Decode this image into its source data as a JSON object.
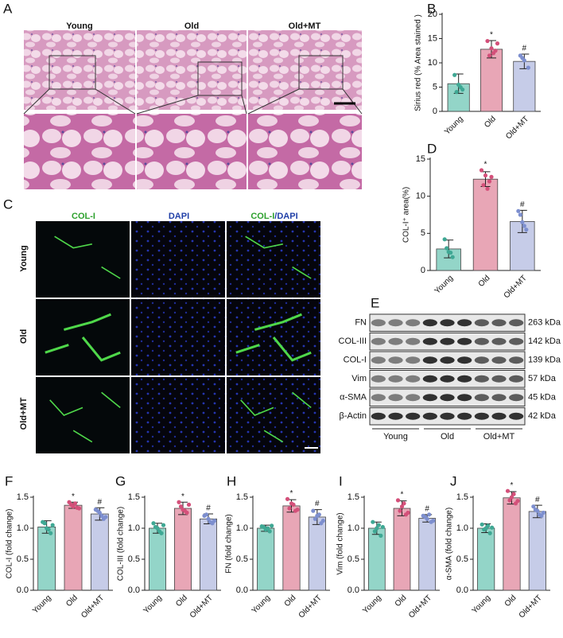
{
  "figure_a": {
    "label": "A",
    "columns": [
      "Young",
      "Old",
      "Old+MT"
    ]
  },
  "figure_c": {
    "label": "C",
    "columns": [
      "COL-I",
      "DAPI"
    ],
    "merged": [
      "COL-I",
      "/DAPI"
    ],
    "rows": [
      "Young",
      "Old",
      "Old+MT"
    ]
  },
  "figure_e": {
    "label": "E",
    "proteins": [
      "FN",
      "COL-III",
      "COL-I",
      "Vim",
      "α-SMA",
      "β-Actin"
    ],
    "sizes": [
      "263 kDa",
      "142 kDa",
      "139 kDa",
      "57 kDa",
      "45 kDa",
      "42 kDa"
    ],
    "groups": [
      "Young",
      "Old",
      "Old+MT"
    ]
  },
  "chart_data": [
    {
      "type": "bar",
      "label": "B",
      "y_label": "Sirius red (% Area stained )",
      "categories": [
        "Young",
        "Old",
        "Old+MT"
      ],
      "colors": [
        "#93d5c8",
        "#e8a6b6",
        "#c6cce8"
      ],
      "point_colors": [
        "#3fa894",
        "#d4507a",
        "#7d8fcf"
      ],
      "values": [
        5.7,
        12.8,
        10.3
      ],
      "errors": [
        2.0,
        1.8,
        1.5
      ],
      "points": [
        [
          7.5,
          5.5,
          4.5,
          4,
          5
        ],
        [
          14.5,
          13,
          12.5,
          11.5,
          12,
          14
        ],
        [
          11.5,
          10.5,
          9,
          11
        ]
      ],
      "annotations": [
        null,
        "*",
        "#"
      ],
      "ylim": [
        0,
        20
      ],
      "yticks": [
        0,
        5,
        10,
        15,
        20
      ]
    },
    {
      "type": "bar",
      "label": "D",
      "y_label": "COL-I⁺ area(%)",
      "categories": [
        "Young",
        "Old",
        "Old+MT"
      ],
      "colors": [
        "#93d5c8",
        "#e8a6b6",
        "#c6cce8"
      ],
      "point_colors": [
        "#3fa894",
        "#d4507a",
        "#7d8fcf"
      ],
      "values": [
        2.9,
        12.3,
        6.6
      ],
      "errors": [
        1.2,
        1.0,
        1.5
      ],
      "points": [
        [
          4.2,
          2.5,
          1.8,
          3,
          2.4
        ],
        [
          13.5,
          12.8,
          12,
          11.5,
          11,
          12.6
        ],
        [
          8,
          6.5,
          5.5,
          7.5,
          6
        ]
      ],
      "annotations": [
        null,
        "*",
        "#"
      ],
      "ylim": [
        0,
        15
      ],
      "yticks": [
        0,
        5,
        10,
        15
      ]
    },
    {
      "type": "bar",
      "label": "F",
      "y_label": "COL-I (fold change)",
      "categories": [
        "Young",
        "Old",
        "Old+MT"
      ],
      "colors": [
        "#93d5c8",
        "#e8a6b6",
        "#c6cce8"
      ],
      "point_colors": [
        "#3fa894",
        "#d4507a",
        "#7d8fcf"
      ],
      "values": [
        1.02,
        1.37,
        1.23
      ],
      "errors": [
        0.1,
        0.05,
        0.1
      ],
      "points": [
        [
          1.1,
          1.0,
          0.92,
          1.08,
          0.98,
          1.05
        ],
        [
          1.42,
          1.35,
          1.33,
          1.38,
          1.4,
          1.32
        ],
        [
          1.3,
          1.25,
          1.15,
          1.28,
          1.2,
          1.18
        ]
      ],
      "annotations": [
        null,
        "*",
        "#"
      ],
      "ylim": [
        0,
        1.5
      ],
      "yticks": [
        {
          "value": 0,
          "label": "0.0"
        },
        {
          "value": 0.5,
          "label": "0.5"
        },
        {
          "value": 1,
          "label": "1.0"
        },
        {
          "value": 1.5,
          "label": "1.5"
        }
      ]
    },
    {
      "type": "bar",
      "label": "G",
      "y_label": "COL-III (fold change)",
      "categories": [
        "Young",
        "Old",
        "Old+MT"
      ],
      "colors": [
        "#93d5c8",
        "#e8a6b6",
        "#c6cce8"
      ],
      "point_colors": [
        "#3fa894",
        "#d4507a",
        "#7d8fcf"
      ],
      "values": [
        1.0,
        1.32,
        1.15
      ],
      "errors": [
        0.08,
        0.1,
        0.08
      ],
      "points": [
        [
          1.08,
          1.0,
          0.92,
          1.02,
          0.95,
          1.05
        ],
        [
          1.42,
          1.3,
          1.25,
          1.35,
          1.28,
          1.38
        ],
        [
          1.2,
          1.15,
          1.08,
          1.22,
          1.1,
          1.12
        ]
      ],
      "annotations": [
        null,
        "*",
        "#"
      ],
      "ylim": [
        0,
        1.5
      ],
      "yticks": [
        {
          "value": 0,
          "label": "0.0"
        },
        {
          "value": 0.5,
          "label": "0.5"
        },
        {
          "value": 1,
          "label": "1.0"
        },
        {
          "value": 1.5,
          "label": "1.5"
        }
      ]
    },
    {
      "type": "bar",
      "label": "H",
      "y_label": "FN (fold change)",
      "categories": [
        "Young",
        "Old",
        "Old+MT"
      ],
      "colors": [
        "#93d5c8",
        "#e8a6b6",
        "#c6cce8"
      ],
      "point_colors": [
        "#3fa894",
        "#d4507a",
        "#7d8fcf"
      ],
      "values": [
        1.0,
        1.36,
        1.18
      ],
      "errors": [
        0.05,
        0.1,
        0.12
      ],
      "points": [
        [
          1.03,
          0.98,
          0.95,
          1.02,
          1.0,
          1.04
        ],
        [
          1.47,
          1.4,
          1.28,
          1.32,
          1.38,
          1.3
        ],
        [
          1.28,
          1.2,
          1.08,
          1.15,
          1.22,
          1.12
        ]
      ],
      "annotations": [
        null,
        "*",
        "#"
      ],
      "ylim": [
        0,
        1.5
      ],
      "yticks": [
        {
          "value": 0,
          "label": "0.0"
        },
        {
          "value": 0.5,
          "label": "0.5"
        },
        {
          "value": 1,
          "label": "1.0"
        },
        {
          "value": 1.5,
          "label": "1.5"
        }
      ]
    },
    {
      "type": "bar",
      "label": "I",
      "y_label": "Vim (fold change)",
      "categories": [
        "Young",
        "Old",
        "Old+MT"
      ],
      "colors": [
        "#93d5c8",
        "#e8a6b6",
        "#c6cce8"
      ],
      "point_colors": [
        "#3fa894",
        "#d4507a",
        "#7d8fcf"
      ],
      "values": [
        1.0,
        1.32,
        1.16
      ],
      "errors": [
        0.1,
        0.12,
        0.06
      ],
      "points": [
        [
          1.1,
          1.0,
          0.88,
          0.95,
          1.05,
          1.02
        ],
        [
          1.45,
          1.35,
          1.22,
          1.28,
          1.4,
          1.25
        ],
        [
          1.2,
          1.15,
          1.1,
          1.18,
          1.22,
          1.12
        ]
      ],
      "annotations": [
        null,
        "*",
        "#"
      ],
      "ylim": [
        0,
        1.5
      ],
      "yticks": [
        {
          "value": 0,
          "label": "0.0"
        },
        {
          "value": 0.5,
          "label": "0.5"
        },
        {
          "value": 1,
          "label": "1.0"
        },
        {
          "value": 1.5,
          "label": "1.5"
        }
      ]
    },
    {
      "type": "bar",
      "label": "J",
      "y_label": "α-SMA (fold change)",
      "categories": [
        "Young",
        "Old",
        "Old+MT"
      ],
      "colors": [
        "#93d5c8",
        "#e8a6b6",
        "#c6cce8"
      ],
      "point_colors": [
        "#3fa894",
        "#d4507a",
        "#7d8fcf"
      ],
      "values": [
        1.0,
        1.49,
        1.27
      ],
      "errors": [
        0.07,
        0.1,
        0.1
      ],
      "points": [
        [
          1.06,
          1.0,
          0.92,
          0.98,
          1.04,
          1.01
        ],
        [
          1.6,
          1.5,
          1.4,
          1.45,
          1.55,
          1.44
        ],
        [
          1.35,
          1.28,
          1.2,
          1.3,
          1.22,
          1.25
        ]
      ],
      "annotations": [
        null,
        "*",
        "#"
      ],
      "ylim": [
        0,
        1.5
      ],
      "yticks": [
        {
          "value": 0,
          "label": "0.0"
        },
        {
          "value": 0.5,
          "label": "0.5"
        },
        {
          "value": 1,
          "label": "1.0"
        },
        {
          "value": 1.5,
          "label": "1.5"
        }
      ]
    }
  ]
}
